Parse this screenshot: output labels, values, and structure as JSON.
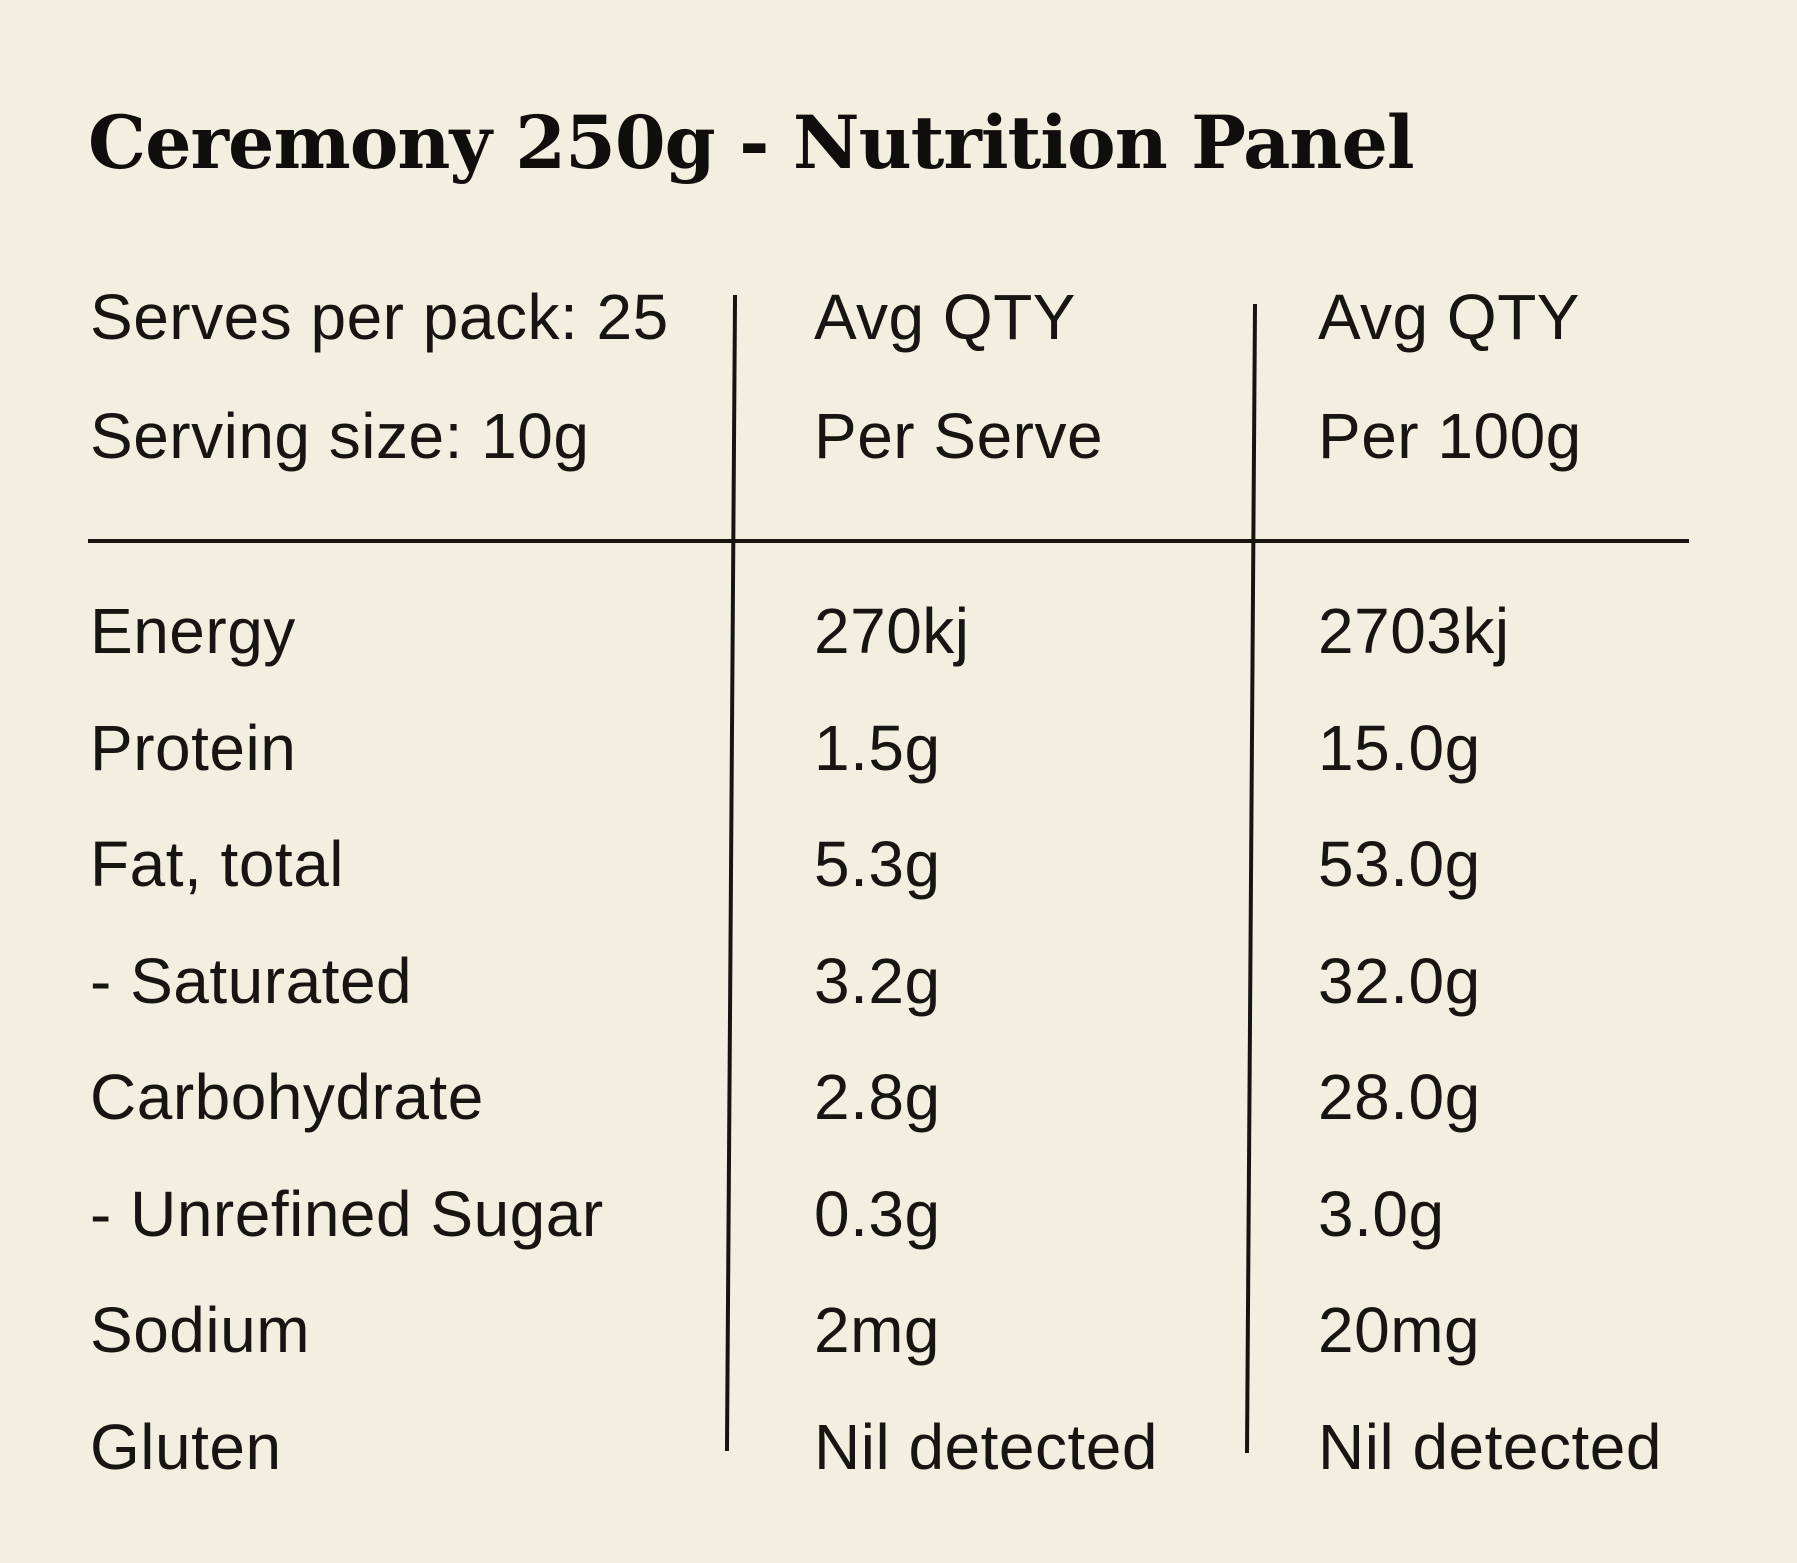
{
  "page": {
    "title": "Ceremony 250g - Nutrition Panel"
  },
  "colors": {
    "background": "#F2EFE1",
    "text": "#161511",
    "line": "#15140F"
  },
  "table": {
    "info": {
      "serves_per_pack": "Serves per pack: 25",
      "serving_size": "Serving size: 10g"
    },
    "columns": {
      "per_serve": {
        "qty_label": "Avg QTY",
        "unit_label": "Per Serve"
      },
      "per_100g": {
        "qty_label": "Avg QTY",
        "unit_label": "Per 100g"
      }
    },
    "rows": [
      {
        "label": "Energy",
        "per_serve": "270kj",
        "per_100g": "2703kj"
      },
      {
        "label": "Protein",
        "per_serve": "1.5g",
        "per_100g": "15.0g"
      },
      {
        "label": "Fat, total",
        "per_serve": "5.3g",
        "per_100g": "53.0g"
      },
      {
        "label": "- Saturated",
        "per_serve": "3.2g",
        "per_100g": "32.0g"
      },
      {
        "label": "Carbohydrate",
        "per_serve": "2.8g",
        "per_100g": "28.0g"
      },
      {
        "label": "- Unrefined Sugar",
        "per_serve": "0.3g",
        "per_100g": "3.0g"
      },
      {
        "label": "Sodium",
        "per_serve": "2mg",
        "per_100g": "20mg"
      },
      {
        "label": "Gluten",
        "per_serve": "Nil detected",
        "per_100g": "Nil detected"
      }
    ]
  }
}
